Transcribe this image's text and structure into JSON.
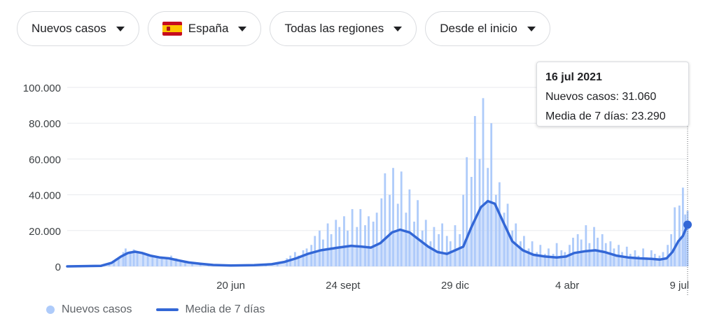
{
  "filters": {
    "metric": "Nuevos casos",
    "country": "España",
    "region": "Todas las regiones",
    "period": "Desde el inicio"
  },
  "tooltip": {
    "date": "16 jul 2021",
    "cases_label": "Nuevos casos: 31.060",
    "avg_label": "Media de 7 días: 23.290"
  },
  "legend": {
    "cases": "Nuevos casos",
    "avg": "Media de 7 días"
  },
  "colors": {
    "bars": "#aecbfa",
    "line": "#3367d6",
    "grid": "#e8eaed"
  },
  "chart_data": {
    "type": "bar",
    "title": "",
    "ylim": [
      0,
      100000
    ],
    "grid": true,
    "y_ticks": [
      {
        "value": 0,
        "label": "0"
      },
      {
        "value": 20000,
        "label": "20.000"
      },
      {
        "value": 40000,
        "label": "40.000"
      },
      {
        "value": 60000,
        "label": "60.000"
      },
      {
        "value": 80000,
        "label": "80.000"
      },
      {
        "value": 100000,
        "label": "100.000"
      }
    ],
    "x_ticks": [
      {
        "date": "2020-06-20",
        "label": "20 jun"
      },
      {
        "date": "2020-09-24",
        "label": "24 sept"
      },
      {
        "date": "2020-12-29",
        "label": "29 dic"
      },
      {
        "date": "2021-04-04",
        "label": "4 abr"
      },
      {
        "date": "2021-07-09",
        "label": "9 jul"
      }
    ],
    "x_range": [
      "2020-02-01",
      "2021-07-16"
    ],
    "selected": {
      "date": "2021-07-16",
      "cases": 31060,
      "avg": 23290
    },
    "series": [
      {
        "name": "Nuevos casos",
        "type": "bar",
        "points": [
          [
            "2020-02-01",
            0
          ],
          [
            "2020-02-20",
            0
          ],
          [
            "2020-03-01",
            200
          ],
          [
            "2020-03-08",
            1000
          ],
          [
            "2020-03-12",
            2500
          ],
          [
            "2020-03-16",
            5000
          ],
          [
            "2020-03-20",
            8000
          ],
          [
            "2020-03-22",
            10000
          ],
          [
            "2020-03-26",
            8500
          ],
          [
            "2020-03-29",
            9500
          ],
          [
            "2020-04-01",
            8000
          ],
          [
            "2020-04-06",
            7500
          ],
          [
            "2020-04-10",
            6500
          ],
          [
            "2020-04-14",
            5500
          ],
          [
            "2020-04-18",
            5000
          ],
          [
            "2020-04-22",
            4500
          ],
          [
            "2020-04-26",
            4000
          ],
          [
            "2020-04-30",
            6000
          ],
          [
            "2020-05-04",
            4500
          ],
          [
            "2020-05-08",
            3000
          ],
          [
            "2020-05-12",
            2000
          ],
          [
            "2020-05-18",
            1500
          ],
          [
            "2020-05-25",
            2000
          ],
          [
            "2020-06-01",
            1000
          ],
          [
            "2020-06-10",
            500
          ],
          [
            "2020-06-20",
            400
          ],
          [
            "2020-07-01",
            500
          ],
          [
            "2020-07-10",
            700
          ],
          [
            "2020-07-20",
            1200
          ],
          [
            "2020-07-30",
            1800
          ],
          [
            "2020-08-07",
            4500
          ],
          [
            "2020-08-10",
            6000
          ],
          [
            "2020-08-14",
            8000
          ],
          [
            "2020-08-17",
            6000
          ],
          [
            "2020-08-21",
            9000
          ],
          [
            "2020-08-24",
            10000
          ],
          [
            "2020-08-28",
            12000
          ],
          [
            "2020-08-31",
            17000
          ],
          [
            "2020-09-04",
            20000
          ],
          [
            "2020-09-07",
            15000
          ],
          [
            "2020-09-11",
            24000
          ],
          [
            "2020-09-14",
            18000
          ],
          [
            "2020-09-18",
            26000
          ],
          [
            "2020-09-21",
            22000
          ],
          [
            "2020-09-25",
            28000
          ],
          [
            "2020-09-28",
            20000
          ],
          [
            "2020-10-02",
            32000
          ],
          [
            "2020-10-06",
            22000
          ],
          [
            "2020-10-09",
            32000
          ],
          [
            "2020-10-13",
            23000
          ],
          [
            "2020-10-16",
            28000
          ],
          [
            "2020-10-20",
            25000
          ],
          [
            "2020-10-23",
            30000
          ],
          [
            "2020-10-27",
            38000
          ],
          [
            "2020-10-30",
            52000
          ],
          [
            "2020-11-03",
            40000
          ],
          [
            "2020-11-06",
            55000
          ],
          [
            "2020-11-10",
            35000
          ],
          [
            "2020-11-13",
            53000
          ],
          [
            "2020-11-17",
            30000
          ],
          [
            "2020-11-20",
            43000
          ],
          [
            "2020-11-24",
            25000
          ],
          [
            "2020-11-27",
            37000
          ],
          [
            "2020-12-01",
            20000
          ],
          [
            "2020-12-04",
            26000
          ],
          [
            "2020-12-08",
            14000
          ],
          [
            "2020-12-11",
            22000
          ],
          [
            "2020-12-15",
            18000
          ],
          [
            "2020-12-18",
            24000
          ],
          [
            "2020-12-22",
            17000
          ],
          [
            "2020-12-25",
            14000
          ],
          [
            "2020-12-29",
            23000
          ],
          [
            "2021-01-02",
            18000
          ],
          [
            "2021-01-05",
            40000
          ],
          [
            "2021-01-08",
            61000
          ],
          [
            "2021-01-12",
            50000
          ],
          [
            "2021-01-15",
            84000
          ],
          [
            "2021-01-19",
            60000
          ],
          [
            "2021-01-22",
            94000
          ],
          [
            "2021-01-26",
            55000
          ],
          [
            "2021-01-29",
            80000
          ],
          [
            "2021-02-02",
            40000
          ],
          [
            "2021-02-05",
            47000
          ],
          [
            "2021-02-09",
            30000
          ],
          [
            "2021-02-12",
            35000
          ],
          [
            "2021-02-16",
            20000
          ],
          [
            "2021-02-19",
            24000
          ],
          [
            "2021-02-23",
            14000
          ],
          [
            "2021-02-26",
            17000
          ],
          [
            "2021-03-02",
            10000
          ],
          [
            "2021-03-05",
            14000
          ],
          [
            "2021-03-09",
            8000
          ],
          [
            "2021-03-12",
            12000
          ],
          [
            "2021-03-16",
            7000
          ],
          [
            "2021-03-19",
            10000
          ],
          [
            "2021-03-23",
            7000
          ],
          [
            "2021-03-26",
            13000
          ],
          [
            "2021-03-30",
            9000
          ],
          [
            "2021-04-02",
            8000
          ],
          [
            "2021-04-06",
            12000
          ],
          [
            "2021-04-09",
            16000
          ],
          [
            "2021-04-13",
            18000
          ],
          [
            "2021-04-16",
            15000
          ],
          [
            "2021-04-20",
            23000
          ],
          [
            "2021-04-23",
            13000
          ],
          [
            "2021-04-27",
            22000
          ],
          [
            "2021-04-30",
            16000
          ],
          [
            "2021-05-04",
            18000
          ],
          [
            "2021-05-07",
            13000
          ],
          [
            "2021-05-11",
            14000
          ],
          [
            "2021-05-14",
            10000
          ],
          [
            "2021-05-18",
            12000
          ],
          [
            "2021-05-21",
            8000
          ],
          [
            "2021-05-25",
            11000
          ],
          [
            "2021-05-28",
            7000
          ],
          [
            "2021-06-01",
            9000
          ],
          [
            "2021-06-04",
            6000
          ],
          [
            "2021-06-08",
            10000
          ],
          [
            "2021-06-11",
            5000
          ],
          [
            "2021-06-15",
            9000
          ],
          [
            "2021-06-18",
            7000
          ],
          [
            "2021-06-22",
            6000
          ],
          [
            "2021-06-25",
            8000
          ],
          [
            "2021-06-29",
            12000
          ],
          [
            "2021-07-02",
            18000
          ],
          [
            "2021-07-05",
            33000
          ],
          [
            "2021-07-09",
            34000
          ],
          [
            "2021-07-12",
            44000
          ],
          [
            "2021-07-14",
            29000
          ],
          [
            "2021-07-16",
            31060
          ]
        ]
      },
      {
        "name": "Media de 7 días",
        "type": "line",
        "points": [
          [
            "2020-02-01",
            0
          ],
          [
            "2020-03-01",
            300
          ],
          [
            "2020-03-10",
            2000
          ],
          [
            "2020-03-18",
            5500
          ],
          [
            "2020-03-24",
            7500
          ],
          [
            "2020-03-30",
            8200
          ],
          [
            "2020-04-05",
            7500
          ],
          [
            "2020-04-12",
            6000
          ],
          [
            "2020-04-20",
            5000
          ],
          [
            "2020-04-28",
            4500
          ],
          [
            "2020-05-05",
            3500
          ],
          [
            "2020-05-15",
            2200
          ],
          [
            "2020-05-25",
            1500
          ],
          [
            "2020-06-05",
            800
          ],
          [
            "2020-06-20",
            500
          ],
          [
            "2020-07-10",
            700
          ],
          [
            "2020-07-25",
            1200
          ],
          [
            "2020-08-05",
            2500
          ],
          [
            "2020-08-15",
            4500
          ],
          [
            "2020-08-25",
            7000
          ],
          [
            "2020-09-05",
            9000
          ],
          [
            "2020-09-20",
            10500
          ],
          [
            "2020-10-01",
            11500
          ],
          [
            "2020-10-10",
            11000
          ],
          [
            "2020-10-18",
            10500
          ],
          [
            "2020-10-26",
            13000
          ],
          [
            "2020-11-05",
            19000
          ],
          [
            "2020-11-12",
            20500
          ],
          [
            "2020-11-20",
            19000
          ],
          [
            "2020-11-28",
            15000
          ],
          [
            "2020-12-06",
            11000
          ],
          [
            "2020-12-14",
            8000
          ],
          [
            "2020-12-22",
            7000
          ],
          [
            "2020-12-29",
            9000
          ],
          [
            "2021-01-05",
            11000
          ],
          [
            "2021-01-12",
            22000
          ],
          [
            "2021-01-20",
            33000
          ],
          [
            "2021-01-26",
            36500
          ],
          [
            "2021-02-01",
            35000
          ],
          [
            "2021-02-08",
            25000
          ],
          [
            "2021-02-16",
            14000
          ],
          [
            "2021-02-25",
            9000
          ],
          [
            "2021-03-06",
            6500
          ],
          [
            "2021-03-16",
            5500
          ],
          [
            "2021-03-26",
            5000
          ],
          [
            "2021-04-03",
            5500
          ],
          [
            "2021-04-10",
            7500
          ],
          [
            "2021-04-20",
            8500
          ],
          [
            "2021-04-28",
            9000
          ],
          [
            "2021-05-06",
            8000
          ],
          [
            "2021-05-16",
            6000
          ],
          [
            "2021-05-26",
            5000
          ],
          [
            "2021-06-05",
            4500
          ],
          [
            "2021-06-15",
            4200
          ],
          [
            "2021-06-22",
            3800
          ],
          [
            "2021-06-28",
            4500
          ],
          [
            "2021-07-03",
            8000
          ],
          [
            "2021-07-08",
            14000
          ],
          [
            "2021-07-12",
            17000
          ],
          [
            "2021-07-16",
            23290
          ]
        ]
      }
    ]
  }
}
